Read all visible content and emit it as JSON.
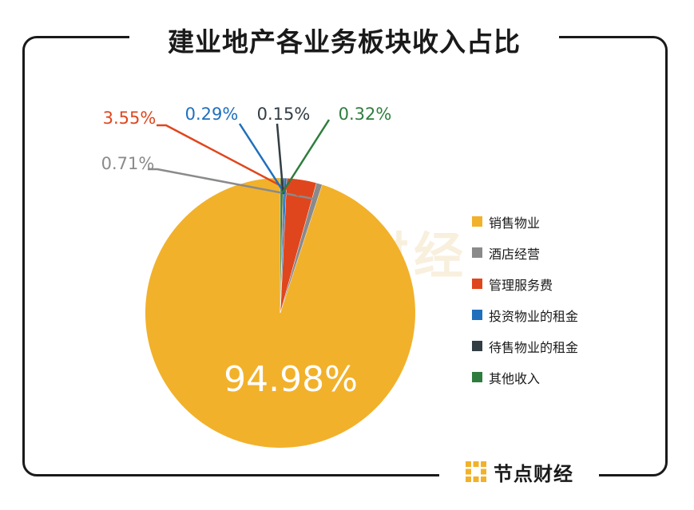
{
  "brand": {
    "name": "节点财经"
  },
  "chart_data": {
    "type": "pie",
    "title": "建业地产各业务板块收入占比",
    "start": "12 o'clock",
    "direction": "counter-clockwise",
    "legend_position": "right",
    "slices": [
      {
        "name": "销售物业",
        "value": 94.98,
        "label": "94.98%",
        "color": "#f2b12b",
        "label_color": "#ffffff"
      },
      {
        "name": "酒店经营",
        "value": 0.71,
        "label": "0.71%",
        "color": "#8a8a8a",
        "label_color": "#8a8a8a"
      },
      {
        "name": "管理服务费",
        "value": 3.55,
        "label": "3.55%",
        "color": "#e0461d",
        "label_color": "#e0461d"
      },
      {
        "name": "投资物业的租金",
        "value": 0.29,
        "label": "0.29%",
        "color": "#1f6fbd",
        "label_color": "#1f6fbd"
      },
      {
        "name": "待售物业的租金",
        "value": 0.15,
        "label": "0.15%",
        "color": "#333d44",
        "label_color": "#333d44"
      },
      {
        "name": "其他收入",
        "value": 0.32,
        "label": "0.32%",
        "color": "#2e7d3e",
        "label_color": "#2e7d3e"
      }
    ]
  }
}
